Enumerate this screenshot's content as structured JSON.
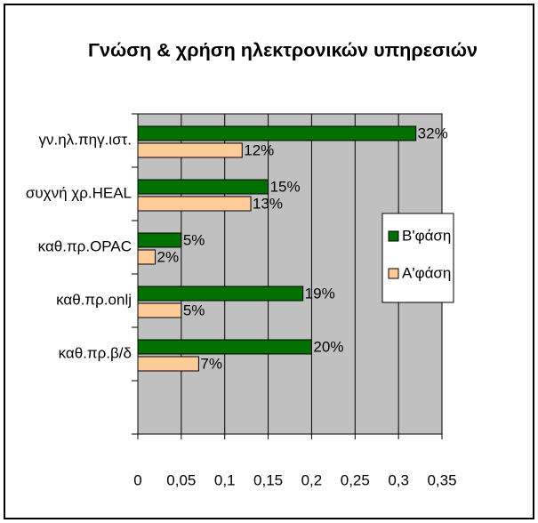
{
  "chart_data": {
    "type": "bar",
    "orientation": "horizontal",
    "title": "Γνώση & χρήση ηλεκτρονικών υπηρεσιών",
    "categories": [
      "γν.ηλ.πηγ.ιστ.",
      "συχνή χρ.HEAL",
      "καθ.πρ.OPAC",
      "καθ.πρ.onlj",
      "καθ.πρ.β/δ",
      null
    ],
    "series": [
      {
        "name": "B'φάση",
        "color": "#007000",
        "values": [
          0.32,
          0.15,
          0.05,
          0.19,
          0.2,
          null
        ],
        "value_labels": [
          "32%",
          "15%",
          "5%",
          "19%",
          "20%",
          null
        ]
      },
      {
        "name": "A'φάση",
        "color": "#ffcc99",
        "values": [
          0.12,
          0.13,
          0.02,
          0.05,
          0.07,
          null
        ],
        "value_labels": [
          "12%",
          "13%",
          "2%",
          "5%",
          "7%",
          null
        ]
      }
    ],
    "xlim": [
      0,
      0.35
    ],
    "xticks": [
      0,
      {
        "value": 0.05,
        "label": "0,05"
      },
      {
        "value": 0.1,
        "label": "0,1"
      },
      {
        "value": 0.15,
        "label": "0,15"
      },
      {
        "value": 0.2,
        "label": "0,2"
      },
      {
        "value": 0.25,
        "label": "0,25"
      },
      {
        "value": 0.3,
        "label": "0,3"
      },
      {
        "value": 0.35,
        "label": "0,35"
      }
    ],
    "grid": true,
    "legend": "right"
  }
}
